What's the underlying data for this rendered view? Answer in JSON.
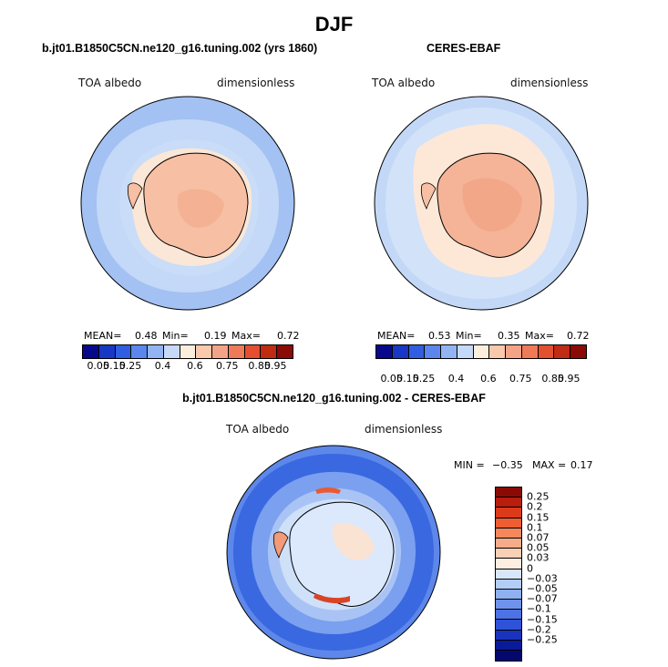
{
  "figure": {
    "title": "DJF"
  },
  "panel1": {
    "title": "b.jt01.B1850C5CN.ne120_g16.tuning.002 (yrs 1860)",
    "variable": "TOA albedo",
    "units": "dimensionless",
    "mean_label": "MEAN=",
    "mean": "0.48",
    "min_label": "Min=",
    "min": "0.19",
    "max_label": "Max=",
    "max": "0.72"
  },
  "panel2": {
    "title": "CERES-EBAF",
    "variable": "TOA albedo",
    "units": "dimensionless",
    "mean_label": "MEAN=",
    "mean": "0.53",
    "min_label": "Min=",
    "min": "0.35",
    "max_label": "Max=",
    "max": "0.72"
  },
  "panel3": {
    "title": "b.jt01.B1850C5CN.ne120_g16.tuning.002 - CERES-EBAF",
    "variable": "TOA albedo",
    "units": "dimensionless",
    "min_label": "MIN =",
    "min": "−0.35",
    "max_label": "MAX =",
    "max": "0.17"
  },
  "colorbar_abs": {
    "colors": [
      "#08088a",
      "#1638c4",
      "#2f5fe0",
      "#5b86ec",
      "#93b4f3",
      "#c7d9f8",
      "#fbeedd",
      "#f8c9ad",
      "#f4a486",
      "#ef7a58",
      "#e4502f",
      "#c02b13",
      "#8a0a05"
    ],
    "labels": [
      "0.05",
      "0.15",
      "0.25",
      "0.4",
      "0.6",
      "0.75",
      "0.85",
      "0.95"
    ]
  },
  "colorbar_diff": {
    "colors": [
      "#8a0a05",
      "#b81e0e",
      "#dc3b1b",
      "#ef5d32",
      "#f4875c",
      "#f6ac88",
      "#f9cfb5",
      "#fdeee2",
      "#d7e6fb",
      "#b3cdf6",
      "#8fb0f1",
      "#6f93ec",
      "#4c72e5",
      "#2f53d8",
      "#1933be",
      "#0a1a99",
      "#04086e"
    ],
    "labels": [
      "0.25",
      "0.2",
      "0.15",
      "0.1",
      "0.07",
      "0.05",
      "0.03",
      "0",
      "−0.03",
      "−0.05",
      "−0.07",
      "−0.1",
      "−0.15",
      "−0.2",
      "−0.25"
    ]
  }
}
